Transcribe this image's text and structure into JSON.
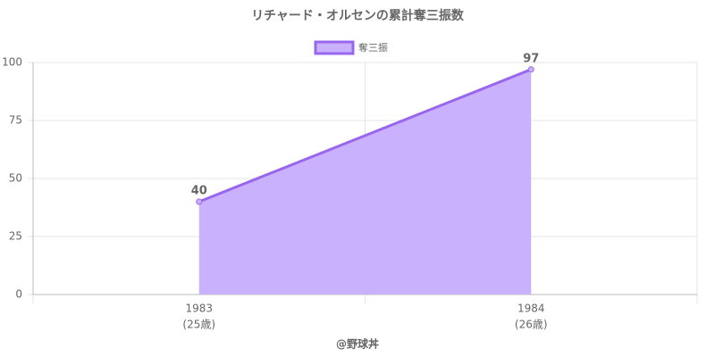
{
  "chart_data": {
    "type": "line",
    "title": "リチャード・オルセンの累計奪三振数",
    "categories": [
      "1983",
      "1984"
    ],
    "category_sublabels": [
      "(25歳)",
      "(26歳)"
    ],
    "series": [
      {
        "name": "奪三振",
        "color": "#9966ee",
        "fill_color": "#c9b1fd",
        "values": [
          40,
          97
        ]
      }
    ],
    "ylim": [
      0,
      100
    ],
    "yticks": [
      0,
      25,
      50,
      75,
      100
    ],
    "grid": true,
    "fill": true,
    "legend": "top",
    "footer": "@野球丼"
  }
}
